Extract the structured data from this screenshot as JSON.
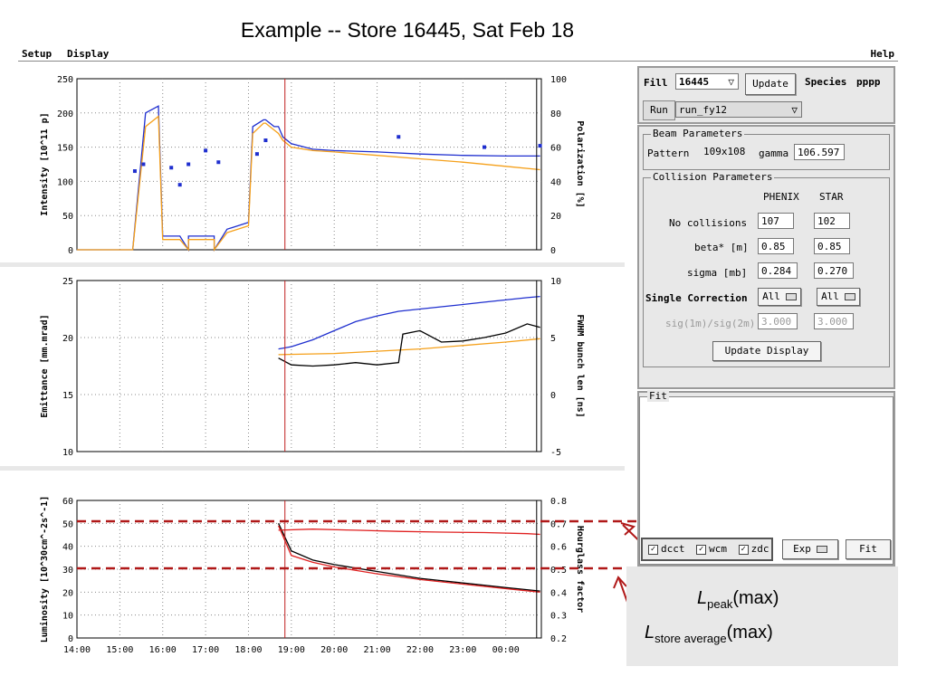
{
  "slide_title": "Example -- Store 16445, Sat Feb 18",
  "menu": {
    "setup": "Setup",
    "display": "Display",
    "help": "Help"
  },
  "fill_panel": {
    "fill_label": "Fill",
    "fill_value": "16445",
    "update_label": "Update",
    "species_label": "Species",
    "species_value": "pppp",
    "run_label": "Run",
    "run_value": "run_fy12"
  },
  "beam": {
    "title": "Beam Parameters",
    "pattern_label": "Pattern",
    "pattern_value": "109x108",
    "gamma_label": "gamma",
    "gamma_value": "106.597"
  },
  "collision": {
    "title": "Collision Parameters",
    "col_phenix": "PHENIX",
    "col_star": "STAR",
    "rows": [
      {
        "label": "No collisions",
        "phenix": "107",
        "star": "102"
      },
      {
        "label": "beta* [m]",
        "phenix": "0.85",
        "star": "0.85"
      },
      {
        "label": "sigma [mb]",
        "phenix": "0.284",
        "star": "0.270"
      }
    ],
    "single_correction_label": "Single Correction",
    "single_correction_phenix": "All",
    "single_correction_star": "All",
    "sig_ratio_label": "sig(1m)/sig(2m)",
    "sig_ratio_phenix": "3.000",
    "sig_ratio_star": "3.000",
    "update_display": "Update Display"
  },
  "fit_panel": {
    "title": "Fit",
    "dcct": "dcct",
    "wcm": "wcm",
    "zdc": "zdc",
    "exp": "Exp",
    "fit_button": "Fit"
  },
  "annotations": {
    "peak_main": "L",
    "peak_sub": "peak",
    "peak_tail": "(max)",
    "avg_main": "L",
    "avg_sub": "store average",
    "avg_tail": "(max)"
  },
  "chart_data": [
    {
      "type": "line",
      "ylabel": "Intensity [10^11 p]",
      "y2label": "Polarization [%]",
      "ylim": [
        0,
        250
      ],
      "y2lim": [
        0,
        100
      ],
      "yticks": [
        "250",
        "200",
        "150",
        "100",
        "50",
        "0"
      ],
      "y2ticks": [
        "100",
        "80",
        "60",
        "40",
        "20",
        "0"
      ],
      "x_range": [
        "14:00",
        "00:50"
      ],
      "series": [
        {
          "color": "#1f2fcf",
          "t": [
            0,
            1.3,
            1.6,
            1.9,
            2.0,
            2.4,
            2.6,
            2.6,
            3.2,
            3.2,
            3.5,
            4.0,
            4.1,
            4.35,
            4.4,
            4.6,
            4.7,
            4.8,
            5.0,
            5.5,
            6,
            7,
            8,
            9,
            10,
            10.8
          ],
          "y": [
            0,
            0,
            200,
            210,
            20,
            20,
            0,
            20,
            20,
            0,
            30,
            40,
            180,
            190,
            190,
            180,
            180,
            165,
            155,
            147,
            145,
            143,
            140,
            138,
            137,
            137
          ]
        },
        {
          "color": "#f5a01a",
          "t": [
            0,
            1.3,
            1.6,
            1.9,
            2.0,
            2.4,
            2.6,
            2.6,
            3.2,
            3.2,
            3.5,
            4.0,
            4.1,
            4.35,
            4.4,
            4.6,
            4.7,
            4.8,
            5.0,
            5.5,
            6,
            7,
            8,
            9,
            10,
            10.8
          ],
          "y": [
            0,
            0,
            180,
            195,
            15,
            15,
            0,
            15,
            15,
            0,
            25,
            35,
            170,
            185,
            185,
            175,
            170,
            160,
            150,
            145,
            143,
            138,
            133,
            128,
            122,
            117
          ]
        }
      ]
    },
    {
      "type": "line",
      "ylabel": "Emittance [mm.mrad]",
      "y2label": "FWHM bunch len [ns]",
      "ylim": [
        10,
        25
      ],
      "y2lim": [
        -5,
        10
      ],
      "yticks": [
        "25",
        "20",
        "15",
        "10"
      ],
      "y2ticks": [
        "10",
        "5",
        "0",
        "-5"
      ],
      "series": [
        {
          "color": "#1f2fcf",
          "t": [
            4.7,
            5.0,
            5.5,
            6.0,
            6.5,
            7.0,
            7.5,
            8.0,
            8.5,
            9.0,
            9.5,
            10.0,
            10.5,
            10.8
          ],
          "y": [
            19.0,
            19.2,
            19.8,
            20.6,
            21.4,
            21.9,
            22.3,
            22.5,
            22.7,
            22.9,
            23.1,
            23.3,
            23.5,
            23.6
          ]
        },
        {
          "color": "#f5a01a",
          "t": [
            4.7,
            6,
            7,
            8,
            9,
            10,
            10.8
          ],
          "y": [
            18.5,
            18.6,
            18.8,
            19.0,
            19.3,
            19.6,
            19.9
          ]
        },
        {
          "color": "#000000",
          "t": [
            4.7,
            5.0,
            5.5,
            6.0,
            6.5,
            7.0,
            7.5,
            7.6,
            8.0,
            8.5,
            9.0,
            9.5,
            10.0,
            10.5,
            10.8
          ],
          "y": [
            18.2,
            17.6,
            17.5,
            17.6,
            17.8,
            17.6,
            17.8,
            20.3,
            20.6,
            19.6,
            19.7,
            20.0,
            20.4,
            21.2,
            20.9
          ]
        }
      ]
    },
    {
      "type": "line",
      "ylabel": "Luminosity [10^30cm^-2s^-1]",
      "y2label": "Hourglass factor",
      "ylim": [
        0,
        60
      ],
      "y2lim": [
        0.2,
        0.8
      ],
      "yticks": [
        "60",
        "50",
        "40",
        "30",
        "20",
        "10",
        "0"
      ],
      "y2ticks": [
        "0.8",
        "0.7",
        "0.6",
        "0.5",
        "0.4",
        "0.3",
        "0.2"
      ],
      "xticks": [
        "14:00",
        "15:00",
        "16:00",
        "17:00",
        "18:00",
        "19:00",
        "20:00",
        "21:00",
        "22:00",
        "23:00",
        "00:00"
      ],
      "series": [
        {
          "color": "#000000",
          "t": [
            4.7,
            5.0,
            5.5,
            6.0,
            7.0,
            8.0,
            9.0,
            10.0,
            10.8
          ],
          "y": [
            50,
            38,
            34,
            32,
            29,
            26,
            24,
            22,
            20.5
          ]
        },
        {
          "color": "#e02020",
          "t": [
            4.7,
            5.0,
            5.5,
            6.0,
            7.0,
            8.0,
            9.0,
            10.0,
            10.8
          ],
          "y": [
            49,
            36,
            33,
            31,
            28,
            25.5,
            23.5,
            21.5,
            20
          ]
        },
        {
          "color": "#e02020",
          "t": [
            4.7,
            5.5,
            6.5,
            7.5,
            8.5,
            9.5,
            10.5,
            10.8
          ],
          "y": [
            47,
            47.5,
            47,
            46.5,
            46.2,
            46,
            45.5,
            45.2
          ]
        }
      ]
    }
  ]
}
